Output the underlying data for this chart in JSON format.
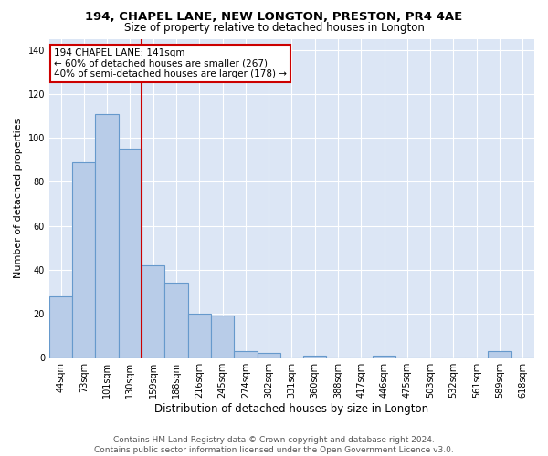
{
  "title1": "194, CHAPEL LANE, NEW LONGTON, PRESTON, PR4 4AE",
  "title2": "Size of property relative to detached houses in Longton",
  "xlabel": "Distribution of detached houses by size in Longton",
  "ylabel": "Number of detached properties",
  "footnote": "Contains HM Land Registry data © Crown copyright and database right 2024.\nContains public sector information licensed under the Open Government Licence v3.0.",
  "categories": [
    "44sqm",
    "73sqm",
    "101sqm",
    "130sqm",
    "159sqm",
    "188sqm",
    "216sqm",
    "245sqm",
    "274sqm",
    "302sqm",
    "331sqm",
    "360sqm",
    "388sqm",
    "417sqm",
    "446sqm",
    "475sqm",
    "503sqm",
    "532sqm",
    "561sqm",
    "589sqm",
    "618sqm"
  ],
  "values": [
    28,
    89,
    111,
    95,
    42,
    34,
    20,
    19,
    3,
    2,
    0,
    1,
    0,
    0,
    1,
    0,
    0,
    0,
    0,
    3,
    0
  ],
  "bar_color": "#b8cce8",
  "bar_edge_color": "#6699cc",
  "fig_background_color": "#ffffff",
  "plot_background_color": "#dce6f5",
  "grid_color": "#ffffff",
  "vline_color": "#cc0000",
  "vline_x": 3.5,
  "annotation_text": "194 CHAPEL LANE: 141sqm\n← 60% of detached houses are smaller (267)\n40% of semi-detached houses are larger (178) →",
  "annotation_box_color": "white",
  "annotation_box_edgecolor": "#cc0000",
  "ylim": [
    0,
    145
  ],
  "yticks": [
    0,
    20,
    40,
    60,
    80,
    100,
    120,
    140
  ],
  "title1_fontsize": 9.5,
  "title2_fontsize": 8.5,
  "xlabel_fontsize": 8.5,
  "ylabel_fontsize": 8,
  "tick_fontsize": 7,
  "footnote_fontsize": 6.5,
  "annotation_fontsize": 7.5
}
